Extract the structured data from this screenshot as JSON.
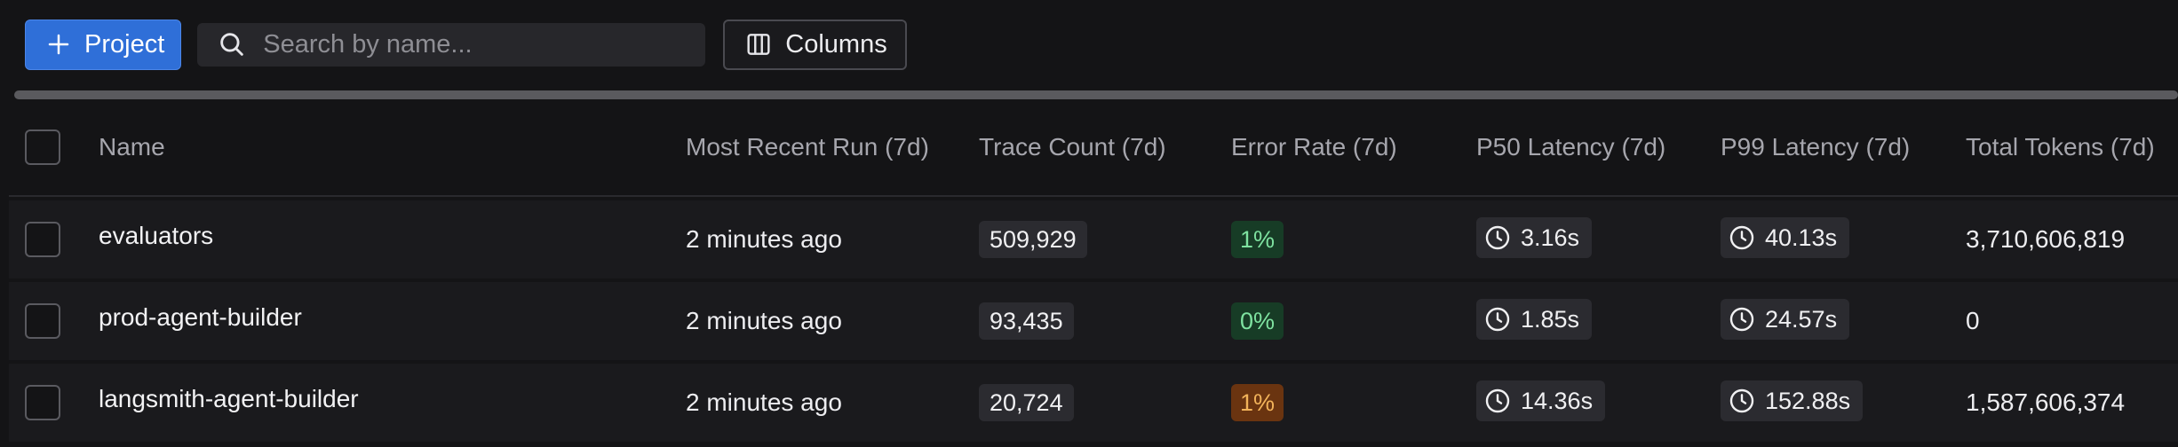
{
  "toolbar": {
    "project_button_label": "Project",
    "search_placeholder": "Search by name...",
    "search_value": "",
    "columns_button_label": "Columns",
    "icons": {
      "add": "plus-icon",
      "search": "search-icon",
      "columns": "columns-icon"
    }
  },
  "colors": {
    "accent": "#2f6fd8",
    "background": "#141416",
    "row_background": "#1a1a1d",
    "error_ok_bg": "#173c26",
    "error_ok_fg": "#7ee2a0",
    "error_warn_bg": "#6a3410",
    "error_warn_fg": "#f2b35a"
  },
  "table": {
    "columns": [
      "Name",
      "Most Recent Run (7d)",
      "Trace Count (7d)",
      "Error Rate (7d)",
      "P50 Latency (7d)",
      "P99 Latency (7d)",
      "Total Tokens (7d)"
    ],
    "rows": [
      {
        "name": "evaluators",
        "most_recent_run": "2 minutes ago",
        "trace_count": "509,929",
        "error_rate": "1%",
        "error_status": "ok",
        "p50_latency": "3.16s",
        "p99_latency": "40.13s",
        "total_tokens": "3,710,606,819"
      },
      {
        "name": "prod-agent-builder",
        "most_recent_run": "2 minutes ago",
        "trace_count": "93,435",
        "error_rate": "0%",
        "error_status": "ok",
        "p50_latency": "1.85s",
        "p99_latency": "24.57s",
        "total_tokens": "0"
      },
      {
        "name": "langsmith-agent-builder",
        "most_recent_run": "2 minutes ago",
        "trace_count": "20,724",
        "error_rate": "1%",
        "error_status": "warn",
        "p50_latency": "14.36s",
        "p99_latency": "152.88s",
        "total_tokens": "1,587,606,374"
      }
    ]
  }
}
